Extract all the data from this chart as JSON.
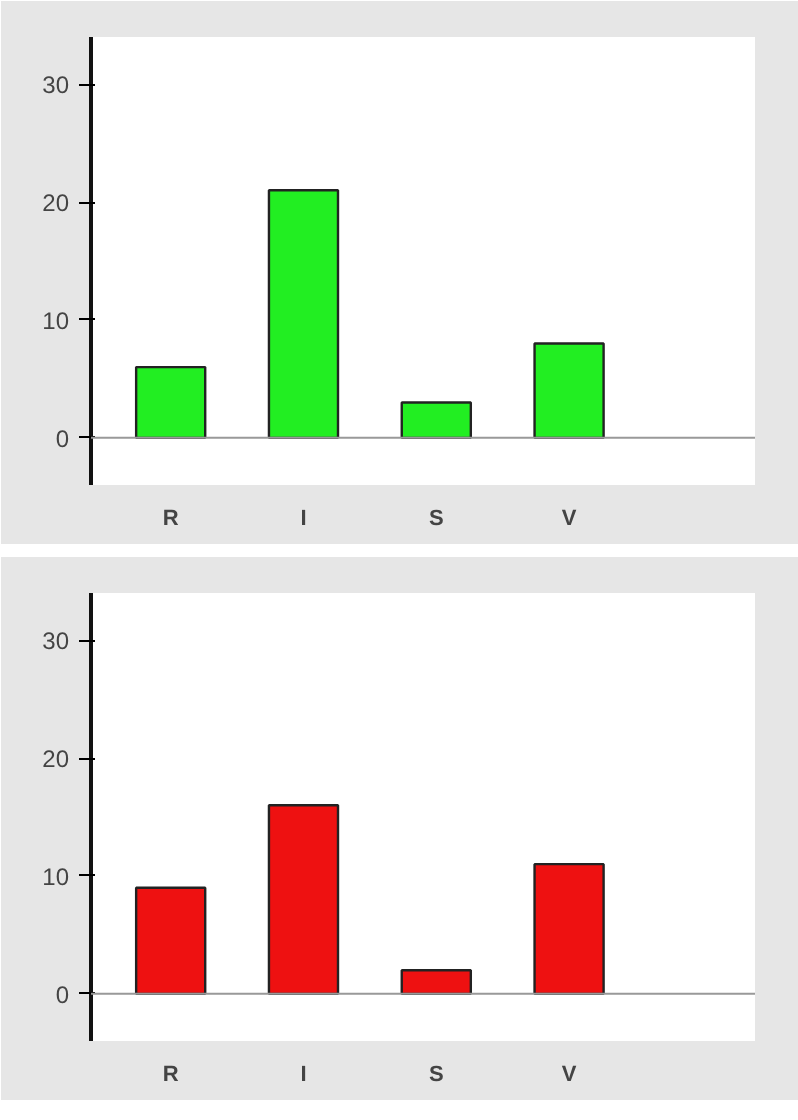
{
  "chart_data": [
    {
      "type": "bar",
      "categories": [
        "R",
        "I",
        "S",
        "V"
      ],
      "values": [
        6,
        21,
        3,
        8
      ],
      "color": "#22ee22",
      "ylim": [
        -4,
        34
      ],
      "yticks": [
        0,
        10,
        20,
        30
      ],
      "ref_lines": [
        {
          "axis": "y",
          "value": 0,
          "color": "#999999"
        }
      ]
    },
    {
      "type": "bar",
      "categories": [
        "R",
        "I",
        "S",
        "V"
      ],
      "values": [
        9,
        16,
        2,
        11
      ],
      "color": "#ee1111",
      "ylim": [
        -4,
        34
      ],
      "yticks": [
        0,
        10,
        20,
        30
      ],
      "ref_lines": [
        {
          "axis": "y",
          "value": 0,
          "color": "#999999"
        }
      ]
    }
  ]
}
